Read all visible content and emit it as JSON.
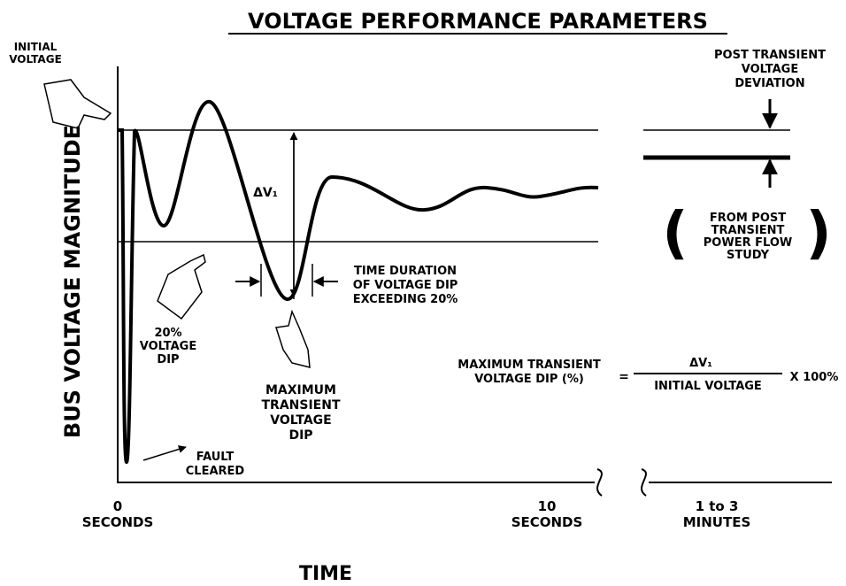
{
  "title": "VOLTAGE PERFORMANCE PARAMETERS",
  "y_axis_label": "BUS VOLTAGE MAGNITUDE",
  "x_axis_label": "TIME",
  "initial_voltage": [
    "INITIAL",
    "VOLTAGE"
  ],
  "post_transient": [
    "POST TRANSIENT",
    "VOLTAGE",
    "DEVIATION"
  ],
  "power_flow": [
    "FROM POST",
    "TRANSIENT",
    "POWER FLOW",
    "STUDY"
  ],
  "delta_v": "ΔV₁",
  "time_duration": [
    "TIME DURATION",
    "OF VOLTAGE DIP",
    "EXCEEDING 20%"
  ],
  "dip_20": [
    "20%",
    "VOLTAGE",
    "DIP"
  ],
  "max_dip": [
    "MAXIMUM",
    "TRANSIENT",
    "VOLTAGE",
    "DIP"
  ],
  "fault_cleared": [
    "FAULT",
    "CLEARED"
  ],
  "formula": {
    "left": [
      "MAXIMUM TRANSIENT",
      "VOLTAGE DIP (%)"
    ],
    "equals": "=",
    "numerator": "ΔV₁",
    "denominator": "INITIAL VOLTAGE",
    "factor": "X 100%"
  },
  "x_labels": [
    [
      "0",
      "SECONDS"
    ],
    [
      "10",
      "SECONDS"
    ],
    [
      "1 to 3",
      "MINUTES"
    ]
  ]
}
